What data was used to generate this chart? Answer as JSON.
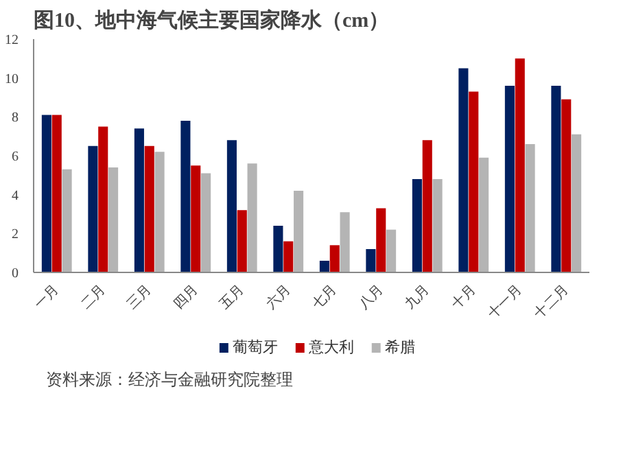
{
  "chart_data": {
    "type": "bar",
    "title": "图10、地中海气候主要国家降水（cm）",
    "categories": [
      "一月",
      "二月",
      "三月",
      "四月",
      "五月",
      "六月",
      "七月",
      "八月",
      "九月",
      "十月",
      "十一月",
      "十二月"
    ],
    "series": [
      {
        "name": "葡萄牙",
        "color": "#002060",
        "values": [
          8.1,
          6.5,
          7.4,
          7.8,
          6.8,
          2.4,
          0.6,
          1.2,
          4.8,
          10.5,
          9.6,
          9.6
        ]
      },
      {
        "name": "意大利",
        "color": "#c00000",
        "values": [
          8.1,
          7.5,
          6.5,
          5.5,
          3.2,
          1.6,
          1.4,
          3.3,
          6.8,
          9.3,
          11.0,
          8.9
        ]
      },
      {
        "name": "希腊",
        "color": "#b4b4b4",
        "values": [
          5.3,
          5.4,
          6.2,
          5.1,
          5.6,
          4.2,
          3.1,
          2.2,
          4.8,
          5.9,
          6.6,
          7.1
        ]
      }
    ],
    "ylim": [
      0,
      12
    ],
    "yticks": [
      0,
      2,
      4,
      6,
      8,
      10,
      12
    ],
    "grid": false,
    "legend": "bottom",
    "annotations": [
      "资料来源：经济与金融研究院整理"
    ]
  }
}
